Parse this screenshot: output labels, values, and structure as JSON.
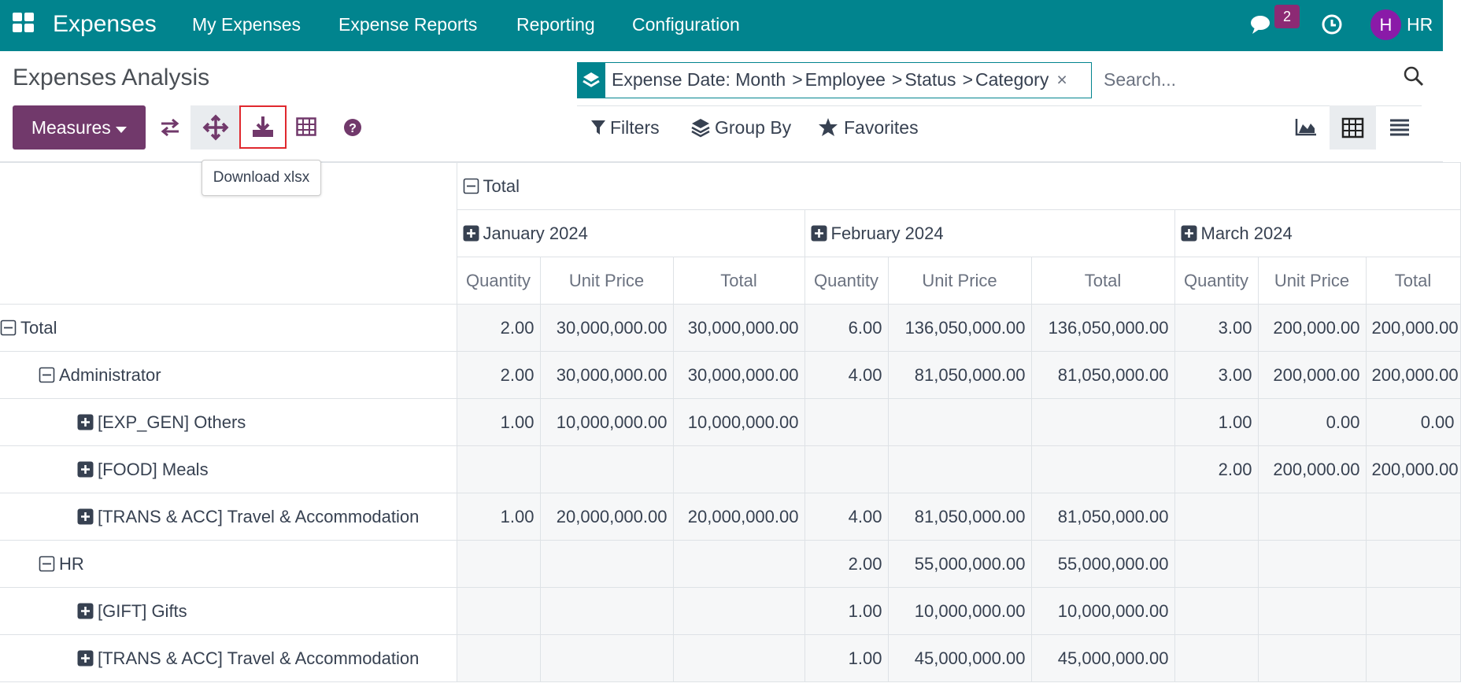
{
  "nav": {
    "brand": "Expenses",
    "menu": [
      "My Expenses",
      "Expense Reports",
      "Reporting",
      "Configuration"
    ],
    "badge": "2",
    "avatar": "H",
    "user": "HR"
  },
  "control_panel": {
    "title": "Expenses Analysis",
    "facet": {
      "parts": [
        "Expense Date: Month",
        "Employee",
        "Status",
        "Category"
      ],
      "separator": ">",
      "close": "×"
    },
    "search_placeholder": "Search...",
    "measures": "Measures",
    "tooltip": "Download xlsx",
    "filters": "Filters",
    "group_by": "Group By",
    "favorites": "Favorites"
  },
  "table": {
    "header": "Total",
    "months": [
      "January 2024",
      "February 2024",
      "March 2024"
    ],
    "measures": [
      "Quantity",
      "Unit Price",
      "Total"
    ],
    "rows": [
      {
        "label": "Total",
        "level": 0,
        "cells": [
          "2.00",
          "30,000,000.00",
          "30,000,000.00",
          "6.00",
          "136,050,000.00",
          "136,050,000.00",
          "3.00",
          "200,000.00",
          "200,000.00"
        ]
      },
      {
        "label": "Administrator",
        "level": 1,
        "cells": [
          "2.00",
          "30,000,000.00",
          "30,000,000.00",
          "4.00",
          "81,050,000.00",
          "81,050,000.00",
          "3.00",
          "200,000.00",
          "200,000.00"
        ]
      },
      {
        "label": "[EXP_GEN] Others",
        "level": 2,
        "cells": [
          "1.00",
          "10,000,000.00",
          "10,000,000.00",
          null,
          null,
          null,
          "1.00",
          "0.00",
          "0.00"
        ]
      },
      {
        "label": "[FOOD] Meals",
        "level": 2,
        "cells": [
          null,
          null,
          null,
          null,
          null,
          null,
          "2.00",
          "200,000.00",
          "200,000.00"
        ]
      },
      {
        "label": "[TRANS & ACC] Travel & Accommodation",
        "level": 2,
        "cells": [
          "1.00",
          "20,000,000.00",
          "20,000,000.00",
          "4.00",
          "81,050,000.00",
          "81,050,000.00",
          null,
          null,
          null
        ]
      },
      {
        "label": "HR",
        "level": 1,
        "cells": [
          null,
          null,
          null,
          "2.00",
          "55,000,000.00",
          "55,000,000.00",
          null,
          null,
          null
        ]
      },
      {
        "label": "[GIFT] Gifts",
        "level": 2,
        "cells": [
          null,
          null,
          null,
          "1.00",
          "10,000,000.00",
          "10,000,000.00",
          null,
          null,
          null
        ]
      },
      {
        "label": "[TRANS & ACC] Travel & Accommodation",
        "level": 2,
        "cells": [
          null,
          null,
          null,
          "1.00",
          "45,000,000.00",
          "45,000,000.00",
          null,
          null,
          null
        ]
      }
    ]
  }
}
